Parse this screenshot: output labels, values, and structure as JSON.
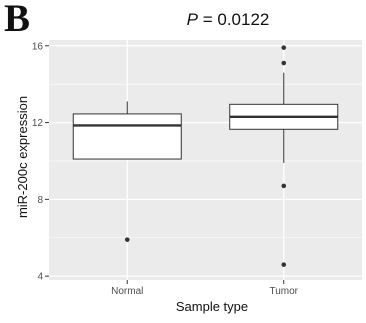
{
  "panel_label": "B",
  "chart_data": {
    "type": "box",
    "title_prefix": "P",
    "title_suffix": " = 0.0122",
    "xlabel": "Sample type",
    "ylabel": "miR-200c expression",
    "categories": [
      "Normal",
      "Tumor"
    ],
    "yticks": [
      4,
      8,
      12,
      16
    ],
    "ylim": [
      3.8,
      16.3
    ],
    "grid": true,
    "background_color": "#ebebeb",
    "grid_color": "#ffffff",
    "box_fill": "#ffffff",
    "line_color": "#333333",
    "boxes": [
      {
        "category": "Normal",
        "whisker_low": 10.1,
        "q1": 10.1,
        "median": 11.85,
        "q3": 12.45,
        "whisker_high": 13.1,
        "outliers": [
          5.9
        ]
      },
      {
        "category": "Tumor",
        "whisker_low": 9.9,
        "q1": 11.65,
        "median": 12.3,
        "q3": 12.95,
        "whisker_high": 14.6,
        "outliers": [
          15.9,
          15.1,
          8.7,
          4.6
        ]
      }
    ]
  }
}
